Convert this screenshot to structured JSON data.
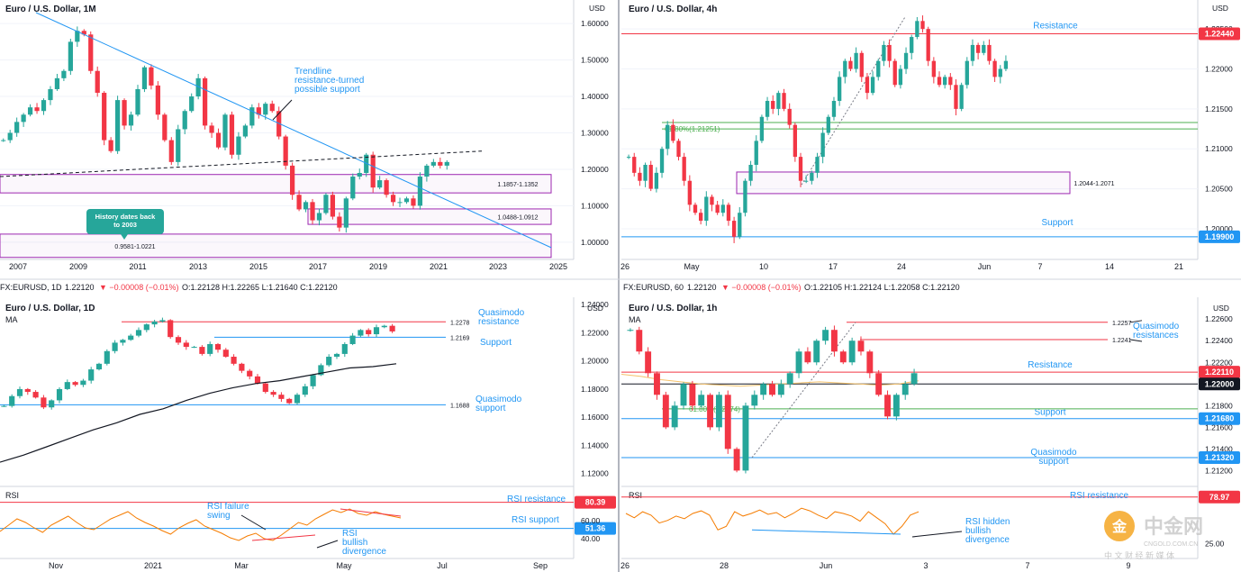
{
  "colors": {
    "accent_blue": "#2962ff",
    "red_line": "#f23645",
    "purple": "#9c27b0",
    "green": "#26a69a",
    "orange": "#f57c00",
    "annot": "#2196f3",
    "fib": "#4caf50"
  },
  "watermark": {
    "name": "中金网",
    "sub": "中 文 财 经 新 媒 体",
    "domain": "CNGOLD.COM.CN"
  },
  "chart_data": [
    {
      "id": "monthly",
      "type": "candlestick",
      "title": "Euro / U.S. Dollar, 1M",
      "currency": "USD",
      "x_ticks": [
        "2007",
        "2009",
        "2011",
        "2013",
        "2015",
        "2017",
        "2019",
        "2021",
        "2023",
        "2025"
      ],
      "y_ticks": [
        "1.60000",
        "1.50000",
        "1.40000",
        "1.30000",
        "1.20000",
        "1.10000",
        "1.00000"
      ],
      "ylim": [
        0.96,
        1.64
      ],
      "zones": [
        {
          "label": "1.1857-1.1352",
          "low": 1.1352,
          "high": 1.1857
        },
        {
          "label": "1.0488-1.0912",
          "low": 1.0488,
          "high": 1.0912
        },
        {
          "label": "0.9581-1.0221",
          "low": 0.9581,
          "high": 1.0221
        }
      ],
      "annotations": {
        "trendline": "Trendline\nresistance-turned\npossible support",
        "history": "History dates back\nto 2003"
      },
      "ohlc_closes": [
        1.28,
        1.3,
        1.33,
        1.35,
        1.37,
        1.36,
        1.39,
        1.42,
        1.45,
        1.47,
        1.55,
        1.58,
        1.57,
        1.47,
        1.41,
        1.28,
        1.25,
        1.39,
        1.32,
        1.35,
        1.42,
        1.48,
        1.43,
        1.35,
        1.28,
        1.22,
        1.31,
        1.36,
        1.4,
        1.45,
        1.32,
        1.3,
        1.26,
        1.35,
        1.24,
        1.29,
        1.32,
        1.37,
        1.35,
        1.38,
        1.36,
        1.29,
        1.21,
        1.13,
        1.09,
        1.11,
        1.06,
        1.08,
        1.13,
        1.07,
        1.04,
        1.12,
        1.18,
        1.19,
        1.24,
        1.15,
        1.17,
        1.13,
        1.11,
        1.11,
        1.12,
        1.1,
        1.18,
        1.21,
        1.22,
        1.21,
        1.22
      ]
    },
    {
      "id": "h4",
      "type": "candlestick",
      "title": "Euro / U.S. Dollar, 4h",
      "currency": "USD",
      "x_ticks": [
        "26",
        "May",
        "10",
        "17",
        "24",
        "Jun",
        "7",
        "14",
        "21"
      ],
      "y_ticks": [
        "1.22500",
        "1.22000",
        "1.21500",
        "1.21000",
        "1.20500",
        "1.20000"
      ],
      "ylim": [
        1.1965,
        1.2275
      ],
      "levels": {
        "resistance": {
          "label": "Resistance",
          "value": "1.22440"
        },
        "support": {
          "label": "Support",
          "value": "1.19900"
        }
      },
      "zone": {
        "label": "1.2044-1.2071",
        "low": 1.2044,
        "high": 1.2071
      },
      "fib": {
        "label": "61.80%(1.21251)"
      },
      "closes": [
        1.209,
        1.207,
        1.206,
        1.208,
        1.205,
        1.207,
        1.21,
        1.213,
        1.211,
        1.209,
        1.206,
        1.203,
        1.202,
        1.201,
        1.204,
        1.203,
        1.202,
        1.203,
        1.201,
        1.199,
        1.202,
        1.206,
        1.208,
        1.211,
        1.214,
        1.216,
        1.215,
        1.217,
        1.215,
        1.213,
        1.209,
        1.206,
        1.206,
        1.207,
        1.209,
        1.212,
        1.214,
        1.216,
        1.219,
        1.221,
        1.22,
        1.222,
        1.219,
        1.217,
        1.219,
        1.221,
        1.223,
        1.221,
        1.218,
        1.22,
        1.222,
        1.224,
        1.226,
        1.225,
        1.221,
        1.219,
        1.218,
        1.219,
        1.218,
        1.215,
        1.218,
        1.221,
        1.223,
        1.222,
        1.223,
        1.221,
        1.219,
        1.22,
        1.221
      ]
    },
    {
      "id": "daily",
      "type": "candlestick",
      "title": "Euro / U.S. Dollar, 1D",
      "currency": "USD",
      "info": {
        "symbol": "FX:EURUSD, 1D",
        "price": "1.22120",
        "change": "▼ −0.00008 (−0.01%)",
        "o": "1.22128",
        "h": "1.22265",
        "l": "1.21640",
        "c": "1.22120"
      },
      "indicator": "MA",
      "x_ticks": [
        "Nov",
        "2021",
        "Mar",
        "May",
        "Jul",
        "Sep"
      ],
      "y_ticks": [
        "1.24000",
        "1.22000",
        "1.20000",
        "1.18000",
        "1.16000",
        "1.14000",
        "1.12000"
      ],
      "ylim": [
        1.114,
        1.244
      ],
      "levels": [
        {
          "label": "Quasimodo resistance",
          "value": "1.2278"
        },
        {
          "label": "Support",
          "value": "1.2169"
        },
        {
          "label": "Quasimodo support",
          "value": "1.1688"
        }
      ],
      "closes": [
        1.168,
        1.175,
        1.18,
        1.178,
        1.174,
        1.167,
        1.172,
        1.18,
        1.185,
        1.183,
        1.186,
        1.194,
        1.198,
        1.207,
        1.213,
        1.215,
        1.218,
        1.222,
        1.226,
        1.228,
        1.229,
        1.217,
        1.213,
        1.21,
        1.21,
        1.205,
        1.212,
        1.208,
        1.203,
        1.198,
        1.193,
        1.189,
        1.184,
        1.178,
        1.176,
        1.173,
        1.17,
        1.176,
        1.182,
        1.19,
        1.197,
        1.203,
        1.205,
        1.212,
        1.218,
        1.222,
        1.219,
        1.224,
        1.225,
        1.221
      ],
      "ma": [
        1.128,
        1.133,
        1.139,
        1.145,
        1.151,
        1.156,
        1.162,
        1.166,
        1.172,
        1.177,
        1.181,
        1.184,
        1.186,
        1.189,
        1.192,
        1.195,
        1.196,
        1.198
      ]
    },
    {
      "id": "rsi_daily",
      "type": "line",
      "label": "RSI",
      "y_ticks": [
        "60.00",
        "40.00"
      ],
      "levels": [
        {
          "label": "RSI resistance",
          "value": "80.39"
        },
        {
          "label": "RSI support",
          "value": "51.36"
        }
      ],
      "annotations": {
        "failure": "RSI failure\nswing",
        "bullish": "RSI\nbullish\ndivergence"
      },
      "values": [
        48,
        55,
        62,
        58,
        52,
        47,
        55,
        60,
        65,
        58,
        52,
        50,
        56,
        62,
        66,
        70,
        63,
        58,
        54,
        49,
        45,
        52,
        57,
        61,
        54,
        50,
        46,
        41,
        38,
        43,
        46,
        40,
        38,
        44,
        51,
        58,
        55,
        62,
        67,
        72,
        69,
        73,
        68,
        66,
        70,
        67,
        65,
        63
      ]
    },
    {
      "id": "h1",
      "type": "candlestick",
      "title": "Euro / U.S. Dollar, 1h",
      "currency": "USD",
      "info": {
        "symbol": "FX:EURUSD, 60",
        "price": "1.22120",
        "change": "▼ −0.00008 (−0.01%)",
        "o": "1.22105",
        "h": "1.22124",
        "l": "1.22058",
        "c": "1.22120"
      },
      "indicator": "MA",
      "x_ticks": [
        "26",
        "28",
        "Jun",
        "3",
        "7",
        "9"
      ],
      "y_ticks": [
        "1.22600",
        "1.22400",
        "1.22200",
        "1.21800",
        "1.21600",
        "1.21400",
        "1.21200"
      ],
      "ylim": [
        1.2112,
        1.2266
      ],
      "levels": [
        {
          "label": "Quasimodo resistances",
          "value": "1.2257"
        },
        {
          "label": "",
          "value": "1.2241"
        },
        {
          "label": "Resistance",
          "value": "1.22110"
        },
        {
          "label": "",
          "value": "1.22000"
        },
        {
          "label": "Support",
          "value": "1.21680"
        },
        {
          "label": "Quasimodo support",
          "value": "1.21320"
        }
      ],
      "fib": {
        "label": "61.80%(1.2174)"
      },
      "closes": [
        1.225,
        1.223,
        1.221,
        1.219,
        1.216,
        1.218,
        1.22,
        1.218,
        1.219,
        1.216,
        1.219,
        1.214,
        1.212,
        1.218,
        1.219,
        1.22,
        1.219,
        1.22,
        1.221,
        1.223,
        1.222,
        1.224,
        1.225,
        1.223,
        1.222,
        1.224,
        1.223,
        1.221,
        1.219,
        1.217,
        1.219,
        1.22,
        1.221
      ],
      "ma": [
        1.2209,
        1.2207,
        1.2204,
        1.2202,
        1.22,
        1.2199,
        1.2198,
        1.2199,
        1.22,
        1.2201,
        1.2202,
        1.2201,
        1.22,
        1.2199,
        1.22,
        1.2203
      ]
    },
    {
      "id": "rsi_h1",
      "type": "line",
      "label": "RSI",
      "y_ticks": [
        "25.00"
      ],
      "levels": [
        {
          "label": "RSI resistance",
          "value": "78.97"
        }
      ],
      "annotations": {
        "hidden": "RSI hidden\nbullish\ndivergence"
      },
      "values": [
        60,
        55,
        62,
        58,
        49,
        52,
        57,
        54,
        60,
        63,
        58,
        41,
        45,
        62,
        57,
        60,
        64,
        59,
        61,
        55,
        60,
        66,
        63,
        58,
        54,
        62,
        60,
        57,
        51,
        62,
        55,
        48,
        36,
        45,
        58,
        62
      ]
    }
  ]
}
